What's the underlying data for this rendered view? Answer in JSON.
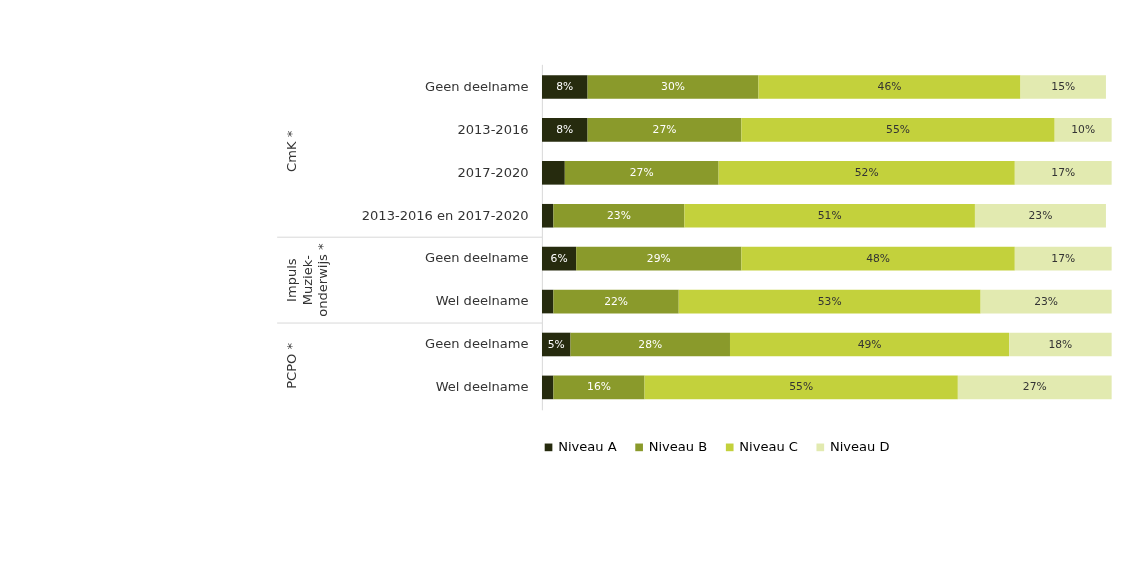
{
  "chart_data": {
    "type": "bar",
    "orientation": "horizontal",
    "stacked": true,
    "categories": [
      "Geen deelname",
      "2013-2016",
      "2017-2020",
      "2013-2016 en 2017-2020",
      "Geen deelname",
      "Wel deelname",
      "Geen deelname",
      "Wel deelname"
    ],
    "series": [
      {
        "name": "Niveau A",
        "color": "#262b0e",
        "values": [
          8,
          8,
          4,
          2,
          6,
          2,
          5,
          2
        ],
        "value_labels": [
          "8%",
          "8%",
          null,
          null,
          "6%",
          null,
          "5%",
          null
        ]
      },
      {
        "name": "Niveau B",
        "color": "#8a9a2b",
        "values": [
          30,
          27,
          27,
          23,
          29,
          22,
          28,
          16
        ],
        "value_labels": [
          "30%",
          "27%",
          "27%",
          "23%",
          "29%",
          "22%",
          "28%",
          "16%"
        ]
      },
      {
        "name": "Niveau C",
        "color": "#c3d13c",
        "values": [
          46,
          55,
          52,
          51,
          48,
          53,
          49,
          55
        ],
        "value_labels": [
          "46%",
          "55%",
          "52%",
          "51%",
          "48%",
          "53%",
          "49%",
          "55%"
        ]
      },
      {
        "name": "Niveau D",
        "color": "#e2eab0",
        "values": [
          15,
          10,
          17,
          23,
          17,
          23,
          18,
          27
        ],
        "value_labels": [
          "15%",
          "10%",
          "17%",
          "23%",
          "17%",
          "23%",
          "18%",
          "27%"
        ]
      }
    ],
    "annotations": [
      "CmK *",
      "Impuls Muziek-onderwijs *",
      "PCPO *"
    ],
    "legend": "bottom",
    "grid": false
  }
}
